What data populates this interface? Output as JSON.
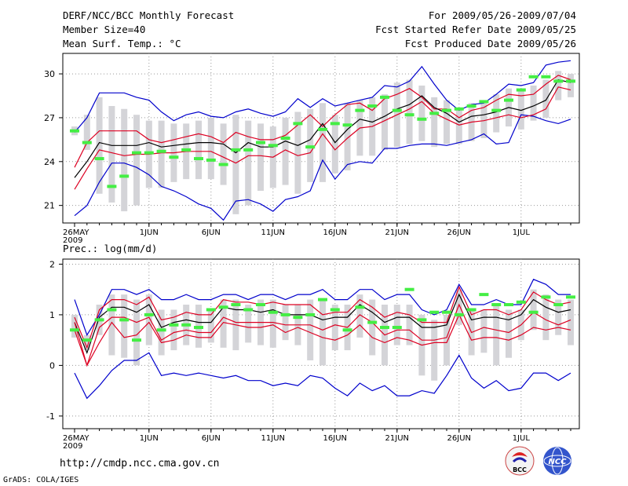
{
  "header": {
    "title_left": "DERF/NCC/BCC Monthly Forecast",
    "member_size": "Member Size=40",
    "variable_temp": "Mean Surf. Temp.: °C",
    "period": "For 2009/05/26-2009/07/04",
    "started_refer": "Fcst Started Refer Date 2009/05/25",
    "produced": "Fcst Produced Date 2009/05/26"
  },
  "footer": {
    "url": "http://cmdp.ncc.cma.gov.cn",
    "grads_credit": "GrADS: COLA/IGES",
    "logo_bcc": "BCC",
    "logo_ncc": "NCC"
  },
  "colors": {
    "ensemble_mean": "#000000",
    "inner_band": "#dd0022",
    "outer_envelope": "#0000cc",
    "box": "#d4d4d8",
    "member_marker": "#44ee44"
  },
  "chart_data": [
    {
      "type": "line",
      "id": "temperature",
      "ylabel": "Mean Surf. Temp.: °C",
      "ylim": [
        19.8,
        31.4
      ],
      "yticks": [
        21,
        24,
        27,
        30
      ],
      "xlabels": [
        "26MAY\n2009",
        "1JUN",
        "6JUN",
        "11JUN",
        "16JUN",
        "21JUN",
        "26JUN",
        "1JUL"
      ],
      "xlabel_days": [
        0,
        6,
        11,
        16,
        21,
        26,
        31,
        36
      ],
      "days": 40,
      "series": [
        {
          "name": "max",
          "values": [
            20.3,
            21.0,
            22.6,
            23.9,
            23.9,
            23.6,
            23.1,
            22.3,
            22.0,
            21.6,
            21.1,
            20.8,
            20.0,
            21.3,
            21.4,
            21.1,
            20.6,
            21.4,
            21.6,
            22.0,
            24.1,
            22.8,
            23.8,
            24.0,
            23.9,
            24.9,
            24.9,
            25.1,
            25.2,
            25.2,
            25.1,
            25.3,
            25.5,
            25.9,
            25.2,
            25.3,
            27.2,
            27.1,
            26.8,
            26.6,
            26.9
          ]
        },
        {
          "name": "max2",
          "values": [
            26.0,
            27.0,
            28.7,
            28.7,
            28.7,
            28.4,
            28.2,
            27.4,
            26.8,
            27.2,
            27.4,
            27.1,
            27.0,
            27.4,
            27.6,
            27.3,
            27.1,
            27.4,
            28.3,
            27.7,
            28.3,
            27.8,
            28.0,
            28.2,
            28.4,
            29.2,
            29.1,
            29.5,
            30.5,
            29.3,
            28.2,
            27.5,
            27.9,
            28.0,
            28.6,
            29.3,
            29.2,
            29.4,
            30.6,
            30.8,
            30.9,
            30.3,
            30.7
          ]
        },
        {
          "name": "hi",
          "values": [
            23.6,
            25.3,
            26.1,
            26.1,
            26.1,
            26.1,
            25.5,
            25.3,
            25.5,
            25.7,
            25.9,
            25.7,
            25.3,
            26.0,
            25.7,
            25.5,
            25.5,
            25.8,
            26.5,
            27.2,
            26.4,
            27.2,
            27.9,
            28.0,
            27.5,
            28.3,
            28.6,
            29.0,
            28.4,
            27.6,
            27.6,
            27.0,
            27.5,
            27.7,
            28.2,
            28.6,
            28.5,
            28.6,
            29.3,
            29.9,
            29.6,
            29.8,
            29.3,
            29.6
          ]
        },
        {
          "name": "mean",
          "values": [
            22.9,
            24.0,
            25.3,
            25.1,
            25.1,
            25.1,
            25.3,
            25.0,
            25.1,
            25.2,
            25.3,
            25.3,
            25.2,
            24.6,
            25.3,
            25.0,
            25.0,
            25.4,
            25.1,
            25.5,
            26.6,
            25.3,
            26.2,
            26.9,
            26.7,
            27.1,
            27.6,
            27.9,
            28.5,
            27.7,
            27.3,
            26.7,
            27.1,
            27.2,
            27.4,
            27.7,
            27.5,
            27.8,
            28.2,
            29.6,
            29.4,
            29.4,
            28.8,
            29.0
          ]
        },
        {
          "name": "lo",
          "values": [
            22.1,
            23.5,
            24.8,
            24.6,
            24.4,
            24.5,
            24.5,
            24.6,
            24.6,
            24.7,
            24.7,
            24.7,
            24.3,
            23.9,
            24.4,
            24.4,
            24.3,
            24.8,
            24.4,
            24.6,
            25.9,
            24.8,
            25.6,
            26.3,
            26.4,
            26.8,
            27.2,
            27.6,
            28.1,
            27.3,
            26.9,
            26.5,
            26.7,
            26.8,
            27.0,
            27.2,
            27.0,
            27.2,
            27.6,
            29.1,
            28.9,
            28.8,
            28.4,
            28.6
          ]
        }
      ],
      "boxes_lo": [
        25.8,
        24.8,
        21.8,
        21.2,
        20.6,
        21.0,
        22.2,
        22.2,
        22.6,
        22.8,
        22.8,
        22.8,
        22.4,
        20.4,
        21.0,
        22.0,
        22.2,
        22.4,
        21.8,
        22.6,
        22.6,
        23.2,
        23.4,
        24.4,
        24.4,
        24.8,
        25.0,
        25.2,
        25.4,
        25.0,
        25.2,
        25.2,
        25.4,
        25.6,
        26.0,
        26.4,
        26.2,
        26.8,
        27.0,
        28.2,
        28.4,
        28.6,
        27.8,
        28.0
      ],
      "boxes_hi": [
        26.4,
        27.2,
        28.4,
        27.8,
        27.6,
        27.2,
        26.8,
        26.8,
        26.6,
        26.6,
        26.8,
        27.0,
        26.6,
        27.2,
        26.8,
        26.6,
        26.4,
        27.0,
        27.4,
        27.6,
        28.0,
        27.2,
        28.0,
        28.2,
        28.4,
        28.6,
        29.4,
        29.6,
        29.2,
        28.4,
        28.2,
        27.6,
        28.0,
        28.2,
        28.6,
        29.0,
        29.0,
        29.2,
        29.6,
        30.2,
        30.0,
        30.4,
        30.0,
        30.2
      ],
      "markers": [
        26.1,
        25.3,
        24.2,
        22.3,
        23.0,
        24.6,
        24.6,
        24.7,
        24.3,
        24.8,
        24.2,
        24.1,
        23.8,
        24.8,
        24.8,
        25.3,
        25.1,
        25.6,
        26.6,
        25.0,
        26.2,
        26.6,
        26.5,
        27.5,
        27.8,
        28.4,
        27.5,
        27.2,
        26.9,
        27.3,
        27.5,
        27.6,
        27.8,
        28.1,
        27.5,
        28.2,
        28.9,
        29.8,
        29.8,
        29.5,
        29.5,
        29.0,
        29.0,
        29.1
      ]
    },
    {
      "type": "line",
      "id": "precipitation",
      "ylabel": "Prec.: log(mm/d)",
      "ylim": [
        -1.25,
        2.1
      ],
      "yticks": [
        -1,
        0,
        1,
        2
      ],
      "xlabels": [
        "26MAY\n2009",
        "1JUN",
        "6JUN",
        "11JUN",
        "16JUN",
        "21JUN",
        "26JUN",
        "1JUL"
      ],
      "xlabel_days": [
        0,
        6,
        11,
        16,
        21,
        26,
        31,
        36
      ],
      "days": 40,
      "series": [
        {
          "name": "max",
          "values": [
            1.3,
            0.6,
            1.0,
            1.5,
            1.5,
            1.4,
            1.5,
            1.3,
            1.3,
            1.4,
            1.3,
            1.3,
            1.4,
            1.4,
            1.3,
            1.4,
            1.4,
            1.3,
            1.4,
            1.4,
            1.5,
            1.3,
            1.3,
            1.5,
            1.5,
            1.3,
            1.4,
            1.4,
            1.1,
            1.0,
            1.1,
            1.6,
            1.2,
            1.2,
            1.3,
            1.2,
            1.2,
            1.7,
            1.6,
            1.4,
            1.4,
            1.5,
            1.5,
            1.5
          ]
        },
        {
          "name": "min",
          "values": [
            -0.15,
            -0.65,
            -0.4,
            -0.1,
            0.1,
            0.1,
            0.25,
            -0.2,
            -0.15,
            -0.2,
            -0.15,
            -0.2,
            -0.25,
            -0.2,
            -0.3,
            -0.3,
            -0.4,
            -0.35,
            -0.4,
            -0.2,
            -0.25,
            -0.45,
            -0.6,
            -0.35,
            -0.5,
            -0.4,
            -0.6,
            -0.6,
            -0.5,
            -0.55,
            -0.2,
            0.2,
            -0.25,
            -0.45,
            -0.3,
            -0.5,
            -0.45,
            -0.15,
            -0.15,
            -0.3,
            -0.15,
            -0.45,
            -0.1,
            0.2
          ]
        },
        {
          "name": "hi",
          "values": [
            0.95,
            0.35,
            1.1,
            1.3,
            1.3,
            1.2,
            1.35,
            0.9,
            0.95,
            1.05,
            1.0,
            1.0,
            1.3,
            1.25,
            1.25,
            1.2,
            1.25,
            1.2,
            1.2,
            1.2,
            1.0,
            1.05,
            1.05,
            1.3,
            1.15,
            0.95,
            1.05,
            1.0,
            0.85,
            0.85,
            0.85,
            1.55,
            1.0,
            1.1,
            1.1,
            1.0,
            1.1,
            1.45,
            1.3,
            1.2,
            1.25,
            1.05,
            1.35,
            1.55
          ]
        },
        {
          "name": "mean",
          "values": [
            0.85,
            0.25,
            0.95,
            1.15,
            1.15,
            1.05,
            1.2,
            0.75,
            0.85,
            0.9,
            0.85,
            0.85,
            1.15,
            1.1,
            1.1,
            1.05,
            1.1,
            1.0,
            1.0,
            1.0,
            0.9,
            0.95,
            0.95,
            1.2,
            1.05,
            0.85,
            0.95,
            0.95,
            0.75,
            0.75,
            0.8,
            1.4,
            0.9,
            0.95,
            0.95,
            0.9,
            1.0,
            1.3,
            1.15,
            1.05,
            1.1,
            0.95,
            1.2,
            1.4
          ]
        },
        {
          "name": "lo",
          "values": [
            0.7,
            0.0,
            0.75,
            0.95,
            0.95,
            0.85,
            0.95,
            0.5,
            0.65,
            0.7,
            0.65,
            0.65,
            0.95,
            0.85,
            0.85,
            0.85,
            0.85,
            0.8,
            0.8,
            0.8,
            0.7,
            0.8,
            0.75,
            1.0,
            0.85,
            0.6,
            0.7,
            0.7,
            0.5,
            0.5,
            0.55,
            1.2,
            0.65,
            0.75,
            0.7,
            0.65,
            0.8,
            1.05,
            0.9,
            0.8,
            0.9,
            0.65,
            0.95,
            1.2
          ]
        },
        {
          "name": "low_band",
          "values": [
            0.85,
            0.0,
            0.45,
            0.85,
            0.55,
            0.6,
            0.85,
            0.45,
            0.5,
            0.6,
            0.55,
            0.55,
            0.85,
            0.8,
            0.75,
            0.75,
            0.8,
            0.65,
            0.75,
            0.65,
            0.55,
            0.5,
            0.6,
            0.8,
            0.55,
            0.45,
            0.55,
            0.5,
            0.4,
            0.45,
            0.45,
            1.0,
            0.5,
            0.55,
            0.55,
            0.5,
            0.6,
            0.75,
            0.7,
            0.75,
            0.7,
            0.6,
            0.9,
            1.2
          ]
        }
      ],
      "boxes_lo": [
        0.55,
        0.3,
        0.6,
        0.2,
        0.15,
        0.0,
        0.4,
        0.2,
        0.3,
        0.4,
        0.35,
        0.45,
        0.35,
        0.3,
        0.45,
        0.4,
        0.35,
        0.5,
        0.4,
        0.1,
        0.0,
        0.3,
        0.3,
        0.55,
        0.2,
        0.0,
        0.4,
        0.4,
        -0.2,
        -0.3,
        0.0,
        0.8,
        0.2,
        0.25,
        0.0,
        0.15,
        0.5,
        0.7,
        0.5,
        0.6,
        0.4,
        0.3,
        0.5,
        0.6,
        1.0
      ],
      "boxes_hi": [
        1.0,
        0.6,
        1.2,
        1.4,
        1.4,
        1.3,
        1.4,
        1.1,
        1.1,
        1.2,
        1.2,
        1.1,
        1.3,
        1.3,
        1.2,
        1.3,
        1.3,
        1.2,
        1.2,
        1.3,
        1.3,
        1.2,
        1.2,
        1.4,
        1.3,
        1.2,
        1.2,
        1.2,
        1.0,
        0.9,
        1.0,
        1.5,
        1.1,
        1.1,
        1.2,
        1.1,
        1.1,
        1.5,
        1.4,
        1.3,
        1.3,
        1.2,
        1.5,
        1.6,
        1.7
      ],
      "markers": [
        0.7,
        0.5,
        0.9,
        1.1,
        0.9,
        0.5,
        1.0,
        0.7,
        0.8,
        0.8,
        0.75,
        1.1,
        1.15,
        1.2,
        1.1,
        1.2,
        1.05,
        1.0,
        0.95,
        1.0,
        1.3,
        1.1,
        0.7,
        1.15,
        0.85,
        0.75,
        0.75,
        1.5,
        0.9,
        1.05,
        1.05,
        1.0,
        1.1,
        1.4,
        1.2,
        1.2,
        1.25,
        1.05,
        1.35,
        1.2,
        1.35,
        1.3,
        1.4,
        1.6
      ]
    }
  ]
}
